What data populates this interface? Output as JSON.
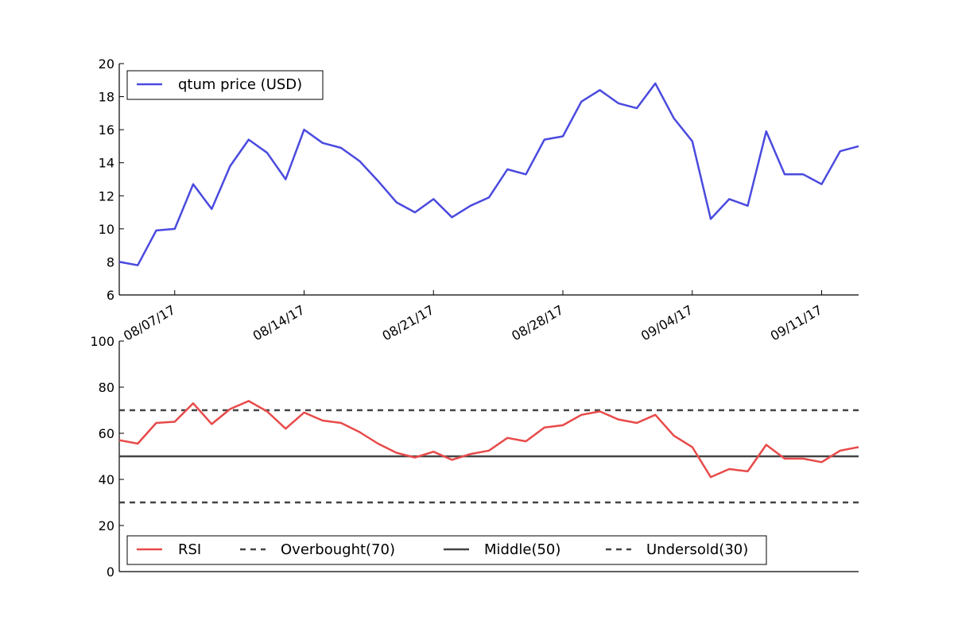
{
  "chart_data": [
    {
      "type": "line",
      "legend_position": "top-left",
      "grid": false,
      "x_tick_labels": [
        "08/07/17",
        "08/14/17",
        "08/21/17",
        "08/28/17",
        "09/04/17",
        "09/11/17"
      ],
      "x_tick_dates": [
        "2017-08-07",
        "2017-08-14",
        "2017-08-21",
        "2017-08-28",
        "2017-09-04",
        "2017-09-11"
      ],
      "ylim": [
        6,
        20
      ],
      "y_ticks": [
        6,
        8,
        10,
        12,
        14,
        16,
        18,
        20
      ],
      "x": [
        "2017-08-04",
        "2017-08-05",
        "2017-08-06",
        "2017-08-07",
        "2017-08-08",
        "2017-08-09",
        "2017-08-10",
        "2017-08-11",
        "2017-08-12",
        "2017-08-13",
        "2017-08-14",
        "2017-08-15",
        "2017-08-16",
        "2017-08-17",
        "2017-08-18",
        "2017-08-19",
        "2017-08-20",
        "2017-08-21",
        "2017-08-22",
        "2017-08-23",
        "2017-08-24",
        "2017-08-25",
        "2017-08-26",
        "2017-08-27",
        "2017-08-28",
        "2017-08-29",
        "2017-08-30",
        "2017-08-31",
        "2017-09-01",
        "2017-09-02",
        "2017-09-03",
        "2017-09-04",
        "2017-09-05",
        "2017-09-06",
        "2017-09-07",
        "2017-09-08",
        "2017-09-09",
        "2017-09-10",
        "2017-09-11",
        "2017-09-12",
        "2017-09-13"
      ],
      "series": [
        {
          "name": "qtum price (USD)",
          "color": "#4a4adf",
          "values": [
            8.0,
            7.8,
            9.9,
            10.0,
            12.7,
            11.2,
            13.8,
            15.4,
            14.6,
            13.0,
            16.0,
            15.2,
            14.9,
            14.1,
            12.9,
            11.6,
            11.0,
            11.8,
            10.7,
            11.4,
            11.9,
            13.6,
            13.3,
            15.4,
            15.6,
            17.7,
            18.4,
            17.6,
            17.3,
            18.8,
            16.7,
            15.3,
            10.6,
            11.8,
            11.4,
            15.9,
            13.3,
            13.3,
            12.7,
            14.7,
            15.0
          ]
        }
      ]
    },
    {
      "type": "line",
      "legend_position": "bottom-left",
      "grid": false,
      "ylim": [
        0,
        100
      ],
      "y_ticks": [
        0,
        20,
        40,
        60,
        80,
        100
      ],
      "series": [
        {
          "name": "RSI",
          "color": "#e84a4a",
          "style": "solid",
          "values": [
            57,
            55.5,
            64.5,
            65,
            73,
            64,
            70.5,
            74,
            69.5,
            62,
            69,
            65.5,
            64.5,
            60.5,
            55.5,
            51.5,
            49.5,
            52,
            48.5,
            51,
            52.5,
            58,
            56.5,
            62.5,
            63.5,
            68,
            69.5,
            66,
            64.5,
            68,
            59,
            54,
            41,
            44.5,
            43.5,
            55,
            49,
            49,
            47.5,
            52.5,
            54
          ]
        },
        {
          "name": "Overbought(70)",
          "color": "#444444",
          "style": "dashed",
          "level": 70
        },
        {
          "name": "Middle(50)",
          "color": "#444444",
          "style": "solid",
          "level": 50
        },
        {
          "name": "Undersold(30)",
          "color": "#444444",
          "style": "dashed",
          "level": 30
        }
      ]
    }
  ]
}
